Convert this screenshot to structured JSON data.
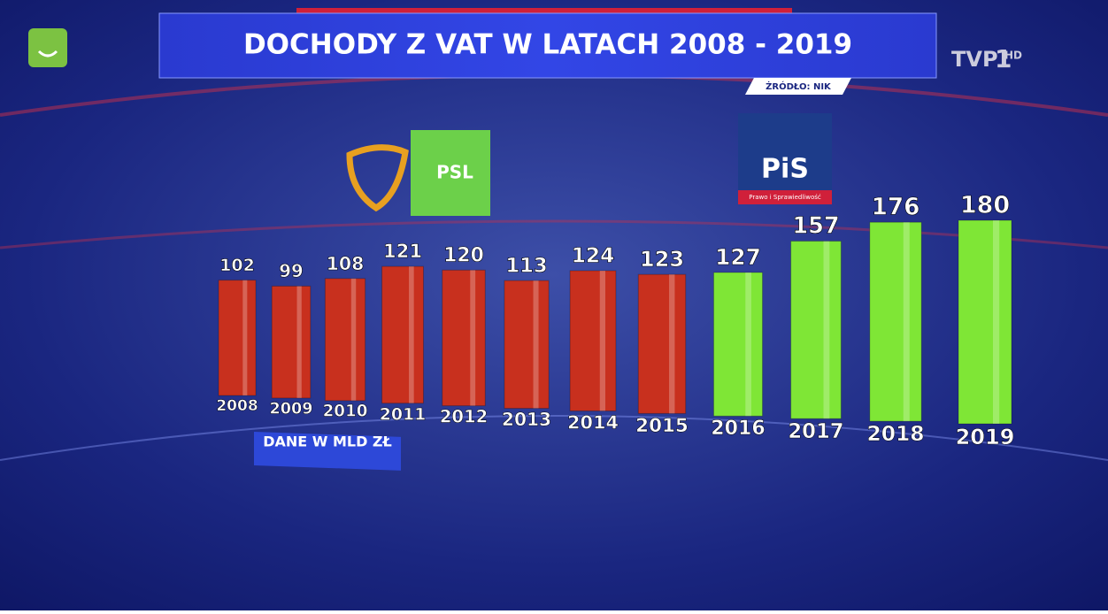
{
  "chart_data": {
    "type": "bar",
    "title": "DOCHODY Z VAT W LATACH 2008 - 2019",
    "source": "ŻRÓDŁO: NIK",
    "unit_note": "DANE W MLD ZŁ",
    "categories": [
      "2008",
      "2009",
      "2010",
      "2011",
      "2012",
      "2013",
      "2014",
      "2015",
      "2016",
      "2017",
      "2018",
      "2019"
    ],
    "values": [
      102,
      99,
      108,
      121,
      120,
      113,
      124,
      123,
      127,
      157,
      176,
      180
    ],
    "colors": [
      "#c8301e",
      "#c8301e",
      "#c8301e",
      "#c8301e",
      "#c8301e",
      "#c8301e",
      "#c8301e",
      "#c8301e",
      "#7fe636",
      "#7fe636",
      "#7fe636",
      "#7fe636"
    ]
  },
  "logos": {
    "psl": "PSL",
    "pis": "PiS",
    "pis_sub": "Prawo i Sprawiedliwość",
    "channel": "TVP",
    "channel_num": "1",
    "hd": "HD"
  }
}
